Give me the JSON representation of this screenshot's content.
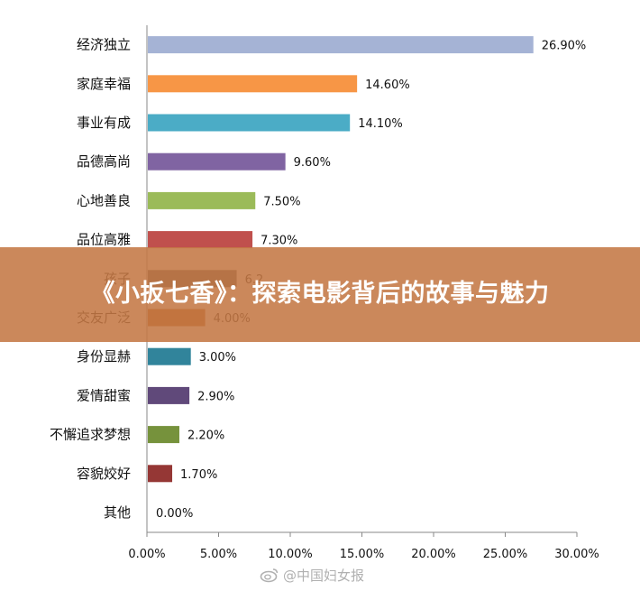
{
  "banner": {
    "title": "《小扳七香》：探索电影背后的故事与魅力"
  },
  "watermark": {
    "text": "@中国妇女报"
  },
  "chart_data": {
    "type": "bar",
    "orientation": "horizontal",
    "categories": [
      "经济独立",
      "家庭幸福",
      "事业有成",
      "品德高尚",
      "心地善良",
      "品位高雅",
      "孩子",
      "交友广泛",
      "身份显赫",
      "爱情甜蜜",
      "不懈追求梦想",
      "容貌姣好",
      "其他"
    ],
    "values": [
      26.9,
      14.6,
      14.1,
      9.6,
      7.5,
      7.3,
      6.2,
      4.0,
      3.0,
      2.9,
      2.2,
      1.7,
      0.0
    ],
    "value_labels": [
      "26.90%",
      "14.60%",
      "14.10%",
      "9.60%",
      "7.50%",
      "7.30%",
      "6.2",
      "4.00%",
      "3.00%",
      "2.90%",
      "2.20%",
      "1.70%",
      "0.00%"
    ],
    "colors": [
      "#a5b3d5",
      "#f79646",
      "#4bacc6",
      "#8064a2",
      "#9bbb59",
      "#c0504d",
      "#555555",
      "#b75d1f",
      "#31849b",
      "#60497a",
      "#76923c",
      "#953735",
      "#4f81bd"
    ],
    "xlim": [
      0,
      30
    ],
    "xticks": [
      "0.00%",
      "5.00%",
      "10.00%",
      "15.00%",
      "20.00%",
      "25.00%",
      "30.00%"
    ],
    "xtick_values": [
      0,
      5,
      10,
      15,
      20,
      25,
      30
    ],
    "grid": false,
    "legend": "none"
  }
}
